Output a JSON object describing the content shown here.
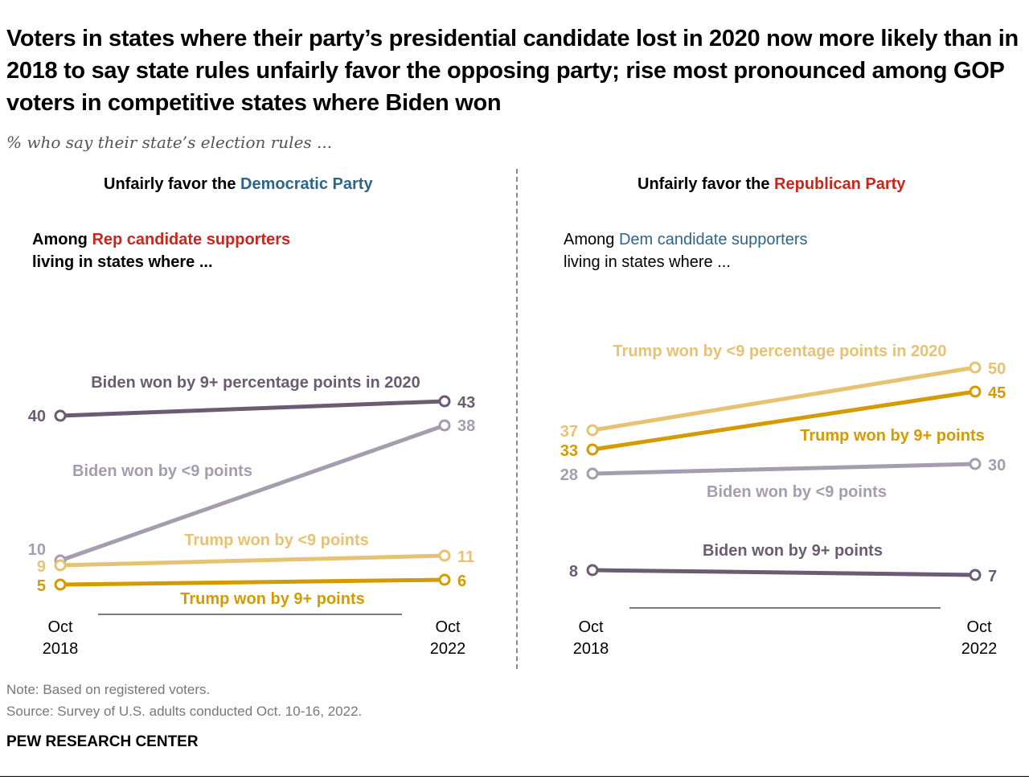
{
  "title": "Voters in states where their party’s presidential candidate lost in 2020 now more likely than in 2018 to say state rules unfairly favor the opposing party; rise most pronounced among GOP voters in competitive states where Biden won",
  "subtitle": "% who say their state’s election rules ...",
  "panels": [
    {
      "title_prefix": "Unfairly favor the ",
      "title_party": "Democratic Party",
      "among_prefix": "Among ",
      "among_group": "Rep candidate supporters",
      "among_suffix": "living in states where ..."
    },
    {
      "title_prefix": "Unfairly favor the ",
      "title_party": "Republican Party",
      "among_prefix": "Among ",
      "among_group": "Dem candidate supporters",
      "among_suffix": "living in states where ..."
    }
  ],
  "footer": {
    "note": "Note: Based on registered voters.",
    "source": "Source: Survey of U.S. adults conducted Oct. 10-16, 2022.",
    "brand": "PEW RESEARCH CENTER"
  },
  "colors": {
    "dem_blue": "#2e6588",
    "rep_red": "#c9261d",
    "biden_9plus": "#6b5b73",
    "biden_lt9": "#a69cb0",
    "trump_lt9": "#e6c273",
    "trump_9plus": "#d49b00"
  },
  "chart_data": [
    {
      "type": "line",
      "title": "Unfairly favor the Democratic Party",
      "x": [
        "Oct 2018",
        "Oct 2022"
      ],
      "x_tick_labels": [
        [
          "Oct",
          "2018"
        ],
        [
          "Oct",
          "2022"
        ]
      ],
      "ylim": [
        0,
        55
      ],
      "grid": false,
      "series": [
        {
          "name": "Biden won by 9+ percentage points in 2020",
          "values": [
            40,
            43
          ],
          "color": "#6b5b73"
        },
        {
          "name": "Biden won by <9 points",
          "values": [
            10,
            38
          ],
          "color": "#a69cb0"
        },
        {
          "name": "Trump won by <9 points",
          "values": [
            9,
            11
          ],
          "color": "#e6c273"
        },
        {
          "name": "Trump won by 9+ points",
          "values": [
            5,
            6
          ],
          "color": "#d49b00"
        }
      ]
    },
    {
      "type": "line",
      "title": "Unfairly favor the Republican Party",
      "x": [
        "Oct 2018",
        "Oct 2022"
      ],
      "x_tick_labels": [
        [
          "Oct",
          "2018"
        ],
        [
          "Oct",
          "2022"
        ]
      ],
      "ylim": [
        0,
        55
      ],
      "grid": false,
      "series": [
        {
          "name": "Trump won by <9 percentage points in 2020",
          "values": [
            37,
            50
          ],
          "color": "#e6c273"
        },
        {
          "name": "Trump won by 9+ points",
          "values": [
            33,
            45
          ],
          "color": "#d49b00"
        },
        {
          "name": "Biden won by <9 points",
          "values": [
            28,
            30
          ],
          "color": "#a69cb0"
        },
        {
          "name": "Biden won by 9+ points",
          "values": [
            8,
            7
          ],
          "color": "#6b5b73"
        }
      ]
    }
  ]
}
